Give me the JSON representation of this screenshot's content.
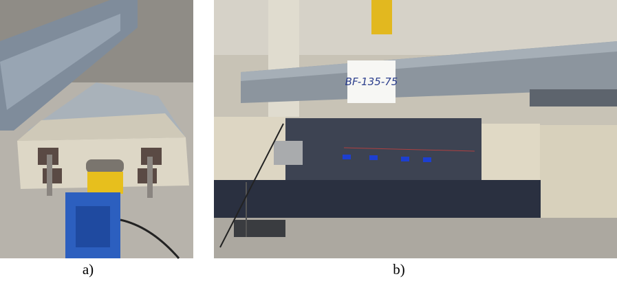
{
  "figure": {
    "panels": [
      {
        "label": "a)"
      },
      {
        "label": "b)",
        "sign": "BF-135-75"
      }
    ]
  }
}
